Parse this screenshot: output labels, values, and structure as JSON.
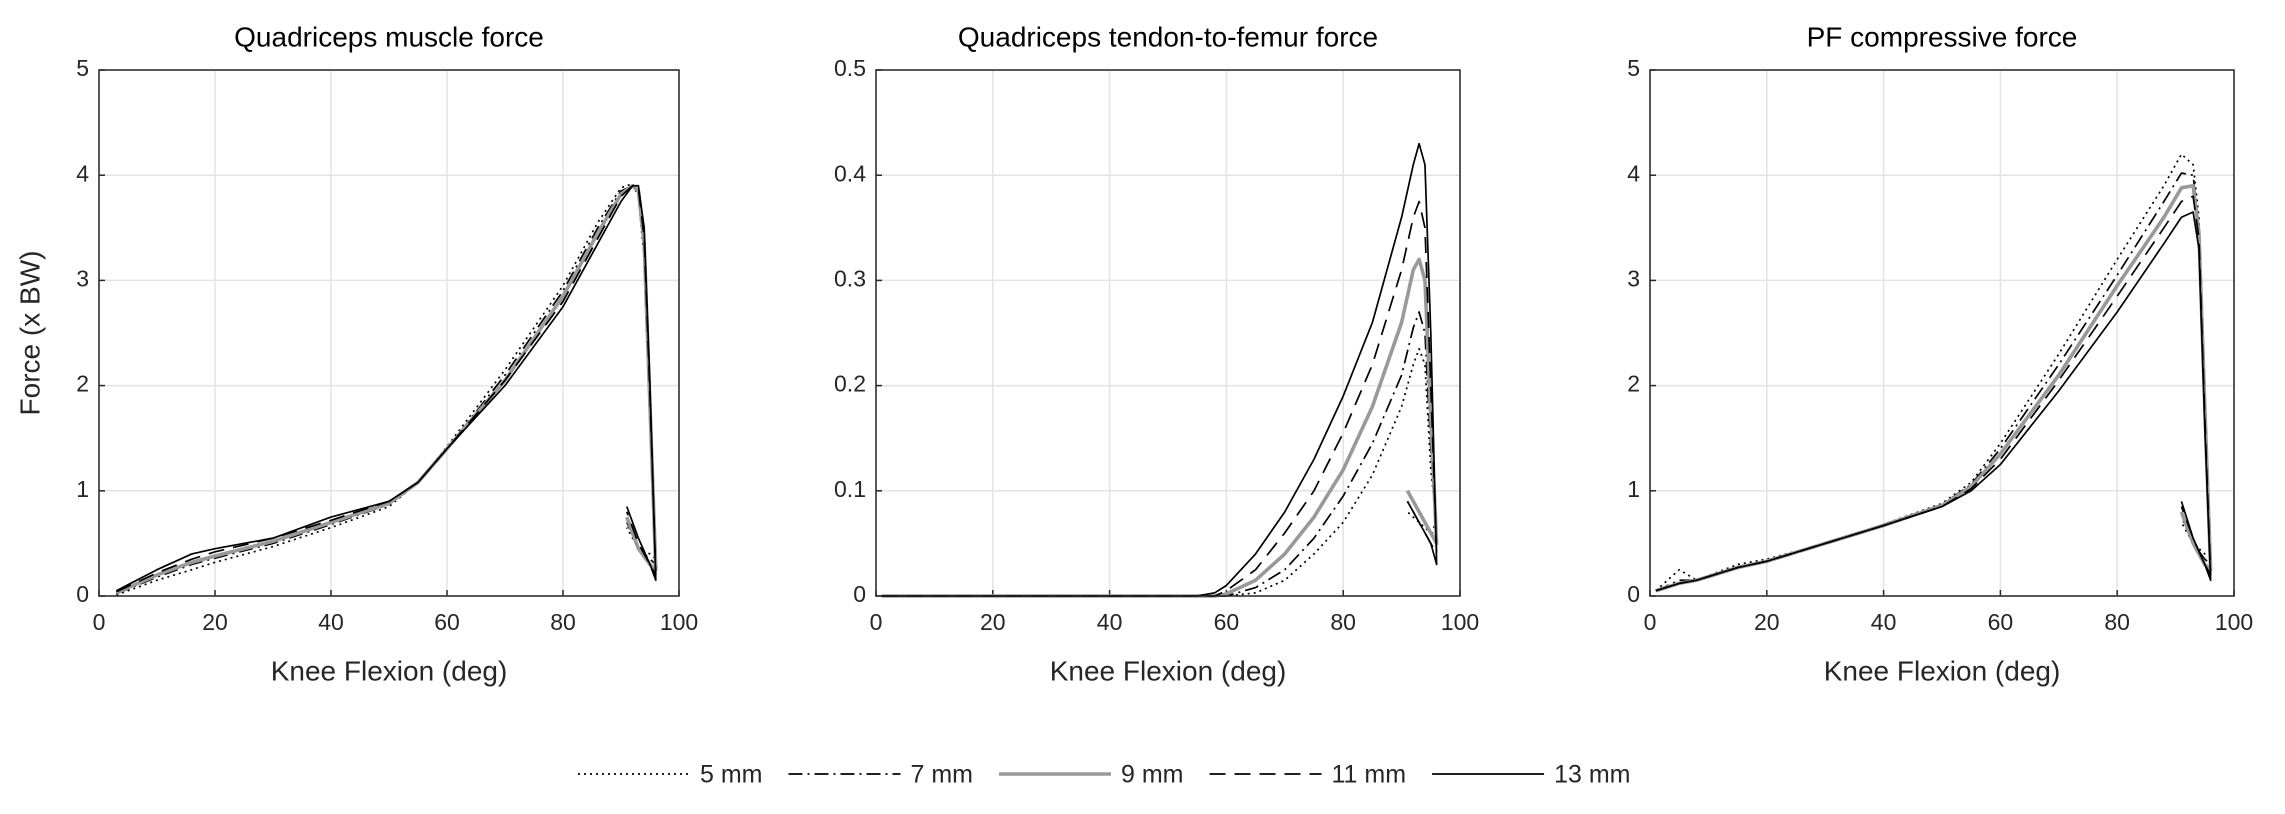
{
  "chart_data": [
    {
      "type": "line",
      "title": "Quadriceps muscle force",
      "x_label": "Knee Flexion (deg)",
      "y_label": "Force (x BW)",
      "xlim": [
        0,
        100
      ],
      "xticks": [
        0,
        20,
        40,
        60,
        80,
        100
      ],
      "ylim": [
        0,
        5
      ],
      "yticks": [
        0,
        1,
        2,
        3,
        4,
        5
      ],
      "grid": true,
      "x": [
        3,
        10,
        16,
        20,
        30,
        40,
        50,
        55,
        60,
        70,
        80,
        86,
        90,
        92,
        93,
        94,
        95,
        96,
        95,
        93,
        91
      ],
      "series": [
        {
          "name": "5 mm",
          "color": "#000000",
          "dash": "dotted",
          "values": [
            0.01,
            0.15,
            0.25,
            0.32,
            0.47,
            0.65,
            0.85,
            1.08,
            1.42,
            2.15,
            2.95,
            3.55,
            3.88,
            3.92,
            3.8,
            3.2,
            1.6,
            0.35,
            0.4,
            0.45,
            0.65
          ]
        },
        {
          "name": "7 mm",
          "color": "#000000",
          "dash": "dashdot",
          "values": [
            0.02,
            0.18,
            0.3,
            0.36,
            0.5,
            0.68,
            0.87,
            1.08,
            1.4,
            2.1,
            2.9,
            3.5,
            3.85,
            3.9,
            3.82,
            3.3,
            1.7,
            0.3,
            0.35,
            0.45,
            0.7
          ]
        },
        {
          "name": "9 mm",
          "color": "#999999",
          "dash": "solid",
          "values": [
            0.03,
            0.2,
            0.32,
            0.38,
            0.52,
            0.7,
            0.88,
            1.08,
            1.4,
            2.05,
            2.85,
            3.45,
            3.82,
            3.9,
            3.85,
            3.35,
            1.8,
            0.25,
            0.3,
            0.45,
            0.75
          ]
        },
        {
          "name": "11 mm",
          "color": "#000000",
          "dash": "dashed",
          "values": [
            0.04,
            0.22,
            0.35,
            0.42,
            0.55,
            0.72,
            0.9,
            1.08,
            1.4,
            2.05,
            2.8,
            3.4,
            3.8,
            3.9,
            3.88,
            3.4,
            1.9,
            0.2,
            0.3,
            0.5,
            0.8
          ]
        },
        {
          "name": "13 mm",
          "color": "#000000",
          "dash": "solid",
          "values": [
            0.05,
            0.25,
            0.4,
            0.45,
            0.55,
            0.75,
            0.9,
            1.08,
            1.4,
            2.0,
            2.75,
            3.35,
            3.75,
            3.9,
            3.9,
            3.5,
            2.0,
            0.15,
            0.3,
            0.55,
            0.85
          ]
        }
      ]
    },
    {
      "type": "line",
      "title": "Quadriceps tendon-to-femur force",
      "x_label": "Knee Flexion (deg)",
      "xlim": [
        0,
        100
      ],
      "xticks": [
        0,
        20,
        40,
        60,
        80,
        100
      ],
      "ylim": [
        0,
        0.5
      ],
      "yticks": [
        0,
        0.1,
        0.2,
        0.3,
        0.4,
        0.5
      ],
      "grid": true,
      "x": [
        1,
        20,
        40,
        55,
        58,
        60,
        65,
        70,
        75,
        80,
        85,
        90,
        92,
        93,
        94,
        95,
        96,
        95,
        93,
        91
      ],
      "series": [
        {
          "color": "#000000",
          "dash": "dotted",
          "values": [
            0,
            0,
            0,
            0,
            0,
            0,
            0.003,
            0.015,
            0.04,
            0.07,
            0.115,
            0.18,
            0.22,
            0.235,
            0.22,
            0.12,
            0.07,
            0.06,
            0.07,
            0.08
          ]
        },
        {
          "color": "#000000",
          "dash": "dashdot",
          "values": [
            0,
            0,
            0,
            0,
            0,
            0,
            0.008,
            0.025,
            0.055,
            0.095,
            0.145,
            0.21,
            0.255,
            0.27,
            0.25,
            0.14,
            0.06,
            0.06,
            0.08,
            0.1
          ]
        },
        {
          "color": "#999999",
          "dash": "solid",
          "values": [
            0,
            0,
            0,
            0,
            0,
            0.002,
            0.015,
            0.04,
            0.075,
            0.12,
            0.18,
            0.26,
            0.31,
            0.32,
            0.3,
            0.17,
            0.05,
            0.06,
            0.08,
            0.1
          ]
        },
        {
          "color": "#000000",
          "dash": "dashed",
          "values": [
            0,
            0,
            0,
            0,
            0,
            0.005,
            0.025,
            0.06,
            0.1,
            0.155,
            0.22,
            0.31,
            0.36,
            0.375,
            0.35,
            0.2,
            0.04,
            0.05,
            0.07,
            0.09
          ]
        },
        {
          "color": "#000000",
          "dash": "solid",
          "values": [
            0,
            0,
            0,
            0,
            0.003,
            0.01,
            0.04,
            0.08,
            0.13,
            0.19,
            0.26,
            0.36,
            0.41,
            0.43,
            0.41,
            0.25,
            0.03,
            0.05,
            0.07,
            0.09
          ]
        }
      ]
    },
    {
      "type": "line",
      "title": "PF compressive force",
      "x_label": "Knee Flexion (deg)",
      "xlim": [
        0,
        100
      ],
      "xticks": [
        0,
        20,
        40,
        60,
        80,
        100
      ],
      "ylim": [
        0,
        5
      ],
      "yticks": [
        0,
        1,
        2,
        3,
        4,
        5
      ],
      "grid": true,
      "x": [
        1,
        5,
        8,
        15,
        20,
        30,
        40,
        50,
        55,
        60,
        70,
        80,
        88,
        91,
        93,
        94,
        95,
        96,
        95,
        93,
        91
      ],
      "series": [
        {
          "color": "#000000",
          "dash": "dotted",
          "values": [
            0.05,
            0.25,
            0.15,
            0.3,
            0.35,
            0.5,
            0.68,
            0.88,
            1.08,
            1.45,
            2.3,
            3.2,
            3.9,
            4.2,
            4.1,
            3.6,
            2.0,
            0.4,
            0.4,
            0.5,
            0.7
          ]
        },
        {
          "color": "#000000",
          "dash": "dashdot",
          "values": [
            0.05,
            0.15,
            0.15,
            0.28,
            0.33,
            0.5,
            0.68,
            0.87,
            1.06,
            1.4,
            2.2,
            3.05,
            3.75,
            4.02,
            4.0,
            3.5,
            1.9,
            0.3,
            0.35,
            0.5,
            0.75
          ]
        },
        {
          "color": "#999999",
          "dash": "solid",
          "values": [
            0.05,
            0.12,
            0.15,
            0.27,
            0.33,
            0.5,
            0.67,
            0.86,
            1.04,
            1.35,
            2.1,
            2.95,
            3.6,
            3.88,
            3.9,
            3.45,
            1.8,
            0.25,
            0.3,
            0.5,
            0.8
          ]
        },
        {
          "color": "#000000",
          "dash": "dashed",
          "values": [
            0.05,
            0.12,
            0.15,
            0.27,
            0.33,
            0.5,
            0.67,
            0.85,
            1.02,
            1.3,
            2.05,
            2.85,
            3.5,
            3.75,
            3.8,
            3.4,
            1.7,
            0.2,
            0.3,
            0.55,
            0.85
          ]
        },
        {
          "color": "#000000",
          "dash": "solid",
          "values": [
            0.05,
            0.12,
            0.15,
            0.27,
            0.33,
            0.5,
            0.67,
            0.85,
            1.0,
            1.25,
            1.95,
            2.7,
            3.35,
            3.6,
            3.65,
            3.3,
            1.6,
            0.15,
            0.3,
            0.55,
            0.9
          ]
        }
      ]
    }
  ]
}
